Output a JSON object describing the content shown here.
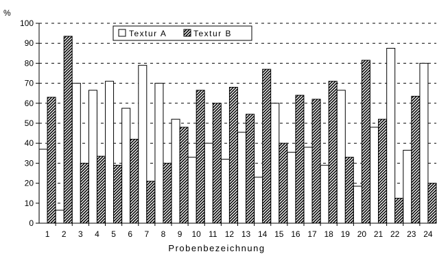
{
  "chart_data": {
    "type": "bar",
    "ylabel": "%",
    "xlabel": "Probenbezeichnung",
    "ylim": [
      0,
      100
    ],
    "yticks": [
      0,
      10,
      20,
      30,
      40,
      50,
      60,
      70,
      80,
      90,
      100
    ],
    "grid": "horizontal dashed",
    "legend_position": "top-center",
    "categories": [
      "1",
      "2",
      "3",
      "4",
      "5",
      "6",
      "7",
      "8",
      "9",
      "10",
      "11",
      "12",
      "13",
      "14",
      "15",
      "16",
      "17",
      "18",
      "19",
      "20",
      "21",
      "22",
      "23",
      "24"
    ],
    "series": [
      {
        "name": "Textur A",
        "style": "white",
        "values": [
          37,
          6.5,
          70,
          66.5,
          71,
          57.5,
          79,
          70,
          52,
          33,
          40,
          32,
          45.5,
          23,
          60,
          35.5,
          38,
          29,
          66.5,
          18.5,
          48,
          87.5,
          36.5,
          80
        ]
      },
      {
        "name": "Textur B",
        "style": "hatched",
        "values": [
          63,
          93.5,
          30,
          33.5,
          29,
          42,
          21,
          30,
          48,
          66.5,
          60,
          68,
          54.5,
          77,
          40,
          64,
          62,
          71,
          33,
          81.5,
          52,
          12.5,
          63.5,
          20
        ]
      }
    ],
    "colors": {
      "bar_outline": "#000000",
      "series_a_fill": "#ffffff",
      "series_b_stripe": "#000000",
      "series_b_bg": "#ffffff"
    }
  }
}
